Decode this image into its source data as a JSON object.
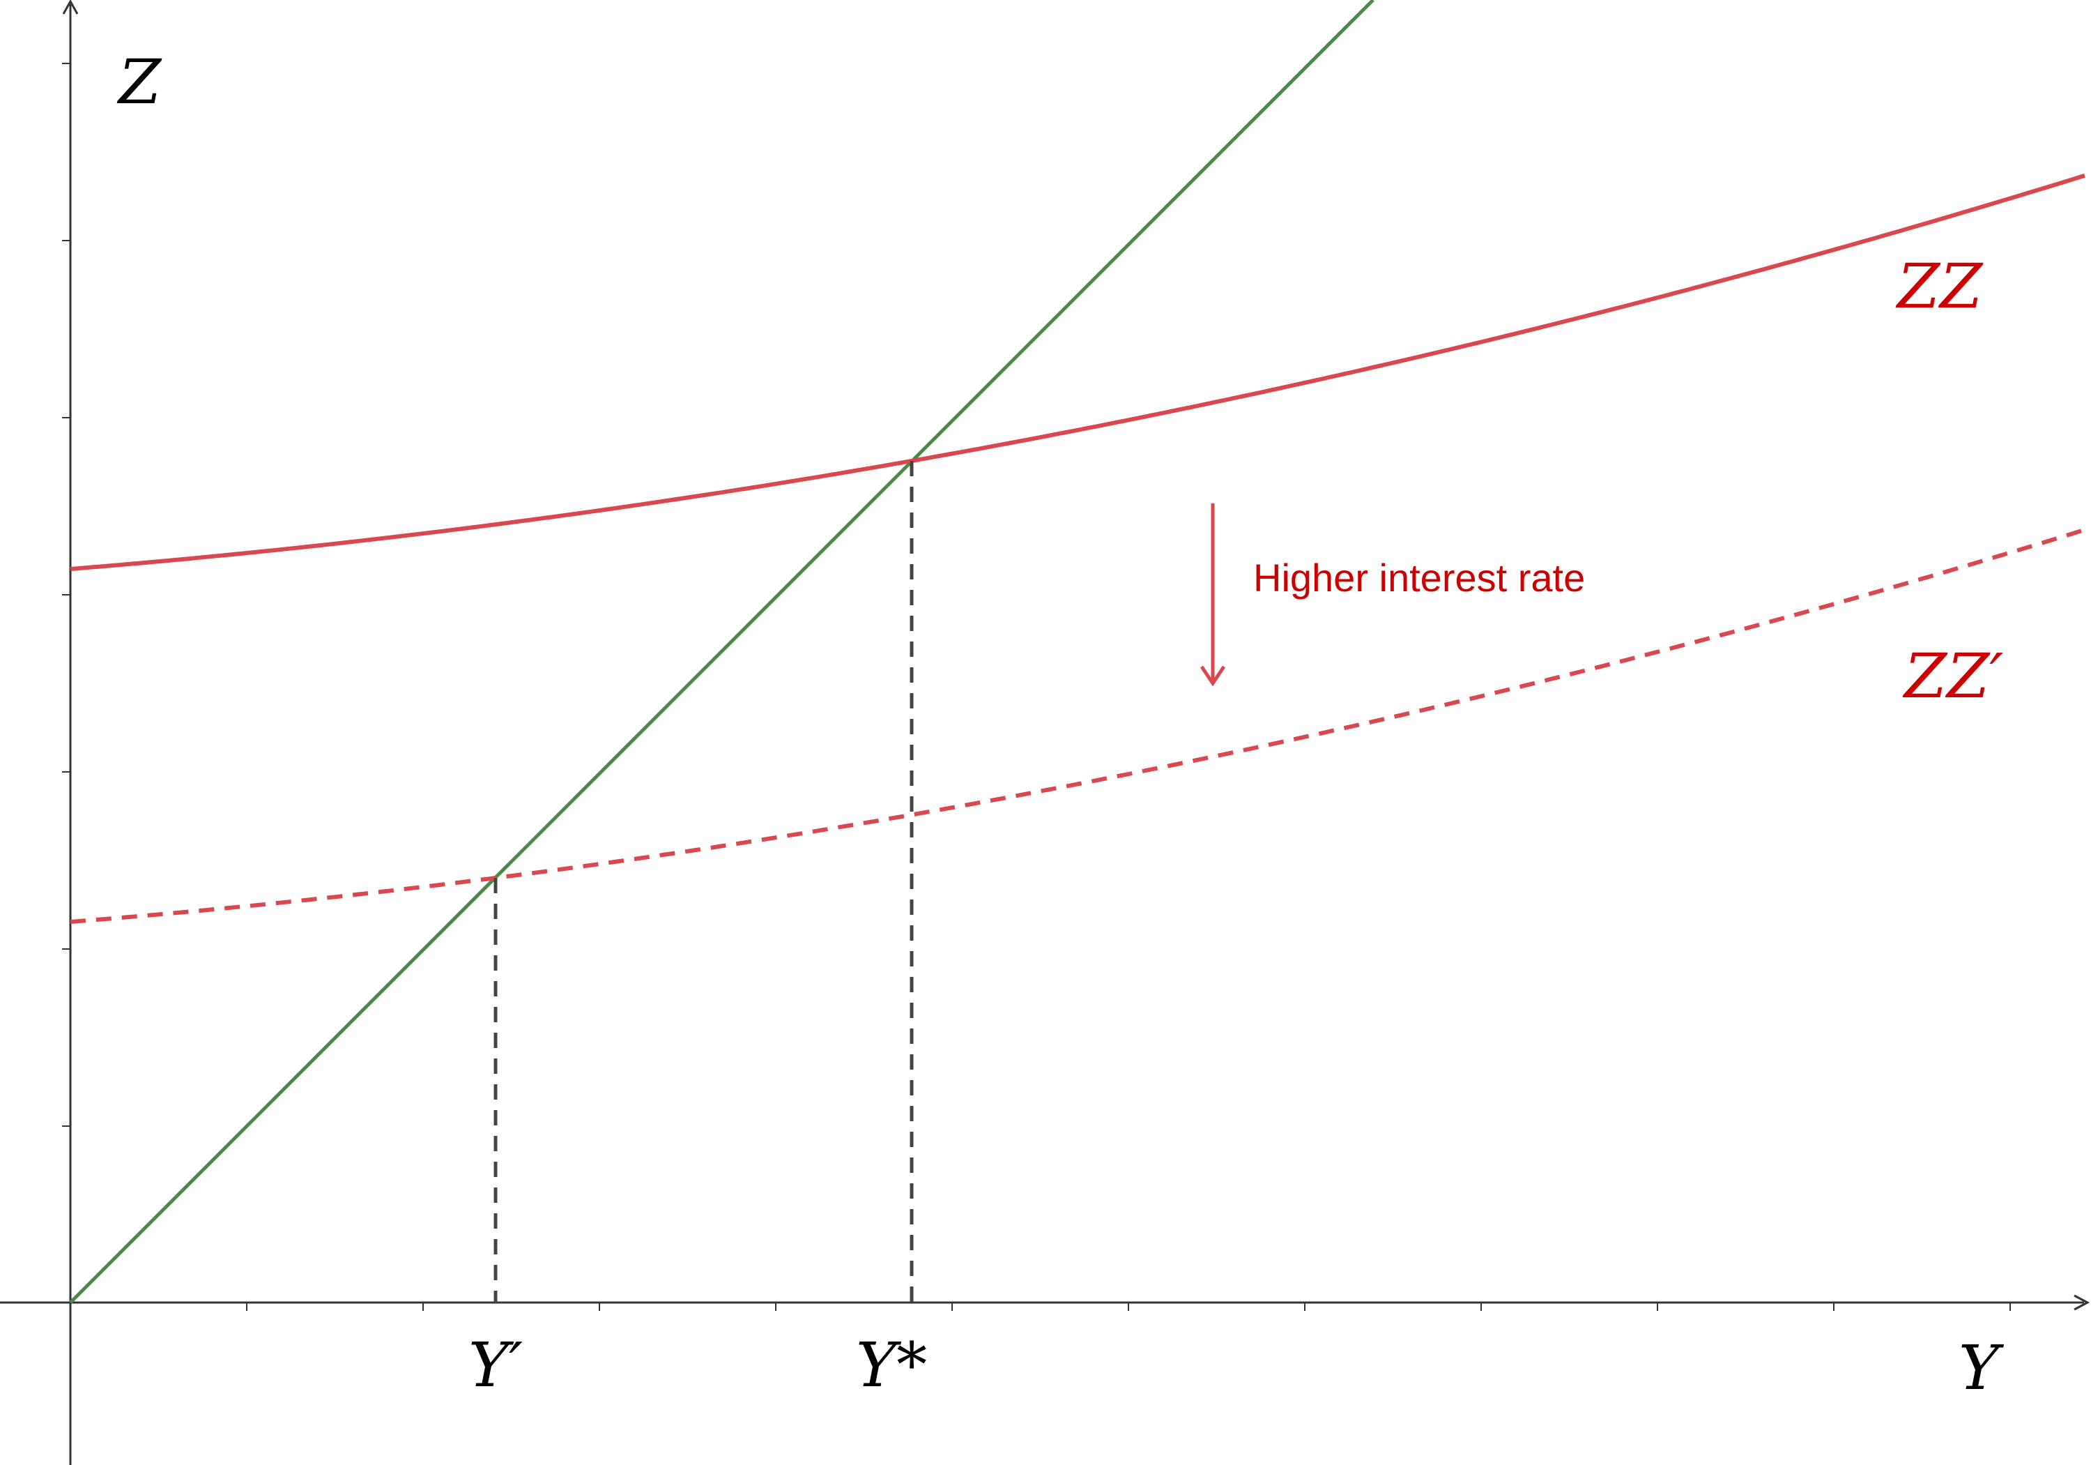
{
  "labels": {
    "z_axis": "Z",
    "y_axis": "Y",
    "zz": "ZZ",
    "zz_prime": "ZZ′",
    "y_prime": "Y′",
    "y_star": "Y*",
    "shift_note": "Higher interest rate"
  },
  "colors": {
    "axis": "#333333",
    "line_45": "#4a8a48",
    "zz": "#d9474f",
    "annotation": "#cc0000",
    "guide": "#444444",
    "label": "#000000"
  }
}
